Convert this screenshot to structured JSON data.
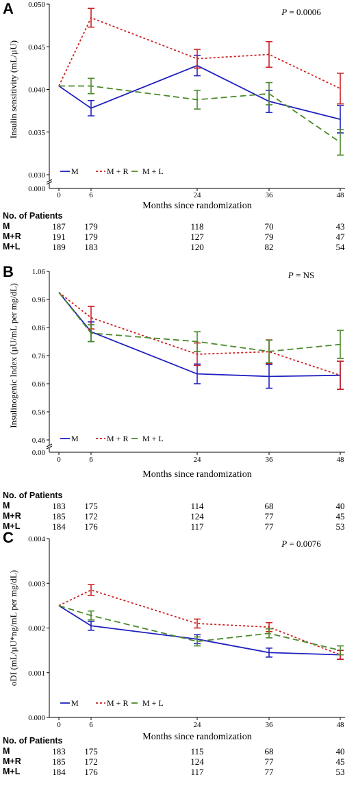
{
  "x_tick_labels": [
    "0",
    "6",
    "24",
    "36",
    "48"
  ],
  "xlabel": "Months since randomization",
  "legend": [
    {
      "name": "M",
      "color": "#2020c0",
      "dash": "solid"
    },
    {
      "name": "M + R",
      "color": "#cc2222",
      "dash": "dotted"
    },
    {
      "name": "M + L",
      "color": "#4a8a2a",
      "dash": "dashed"
    }
  ],
  "patients_header": "No. of Patients",
  "chart_data": [
    {
      "panel": "A",
      "type": "line",
      "ylabel": "Insulin sensitivity (mL/µU)",
      "p_label": "P",
      "p_value": " = 0.0006",
      "x": [
        0,
        6,
        24,
        36,
        48
      ],
      "ylim": [
        0.03,
        0.05
      ],
      "yticks": [
        "0.030",
        "0.035",
        "0.040",
        "0.045",
        "0.050"
      ],
      "ytick_values": [
        0.03,
        0.035,
        0.04,
        0.045,
        0.05
      ],
      "axis_break_label": "0.000",
      "series": [
        {
          "name": "M",
          "values": [
            0.0404,
            0.0378,
            0.0428,
            0.0386,
            0.0365
          ],
          "err": [
            0,
            0.0009,
            0.0012,
            0.0013,
            0.0016
          ]
        },
        {
          "name": "M + R",
          "values": [
            0.0404,
            0.0484,
            0.0436,
            0.0441,
            0.0401
          ],
          "err": [
            0,
            0.0011,
            0.0011,
            0.0015,
            0.0018
          ]
        },
        {
          "name": "M + L",
          "values": [
            0.0404,
            0.0404,
            0.0388,
            0.0395,
            0.0338
          ],
          "err": [
            0,
            0.0009,
            0.0011,
            0.0013,
            0.0015
          ]
        }
      ],
      "patients": [
        {
          "label": "M",
          "counts": [
            "187",
            "179",
            "118",
            "70",
            "43"
          ]
        },
        {
          "label": "M+R",
          "counts": [
            "191",
            "179",
            "127",
            "79",
            "47"
          ]
        },
        {
          "label": "M+L",
          "counts": [
            "189",
            "183",
            "120",
            "82",
            "54"
          ]
        }
      ]
    },
    {
      "panel": "B",
      "type": "line",
      "ylabel": "Insulinogenic Index (µU/mL per mg/dL)",
      "p_label": "P",
      "p_value": " = NS",
      "x": [
        0,
        6,
        24,
        36,
        48
      ],
      "ylim": [
        0.46,
        1.06
      ],
      "yticks": [
        "0.46",
        "0.56",
        "0.66",
        "0.76",
        "0.86",
        "0.96",
        "1.06"
      ],
      "ytick_values": [
        0.46,
        0.56,
        0.66,
        0.76,
        0.86,
        0.96,
        1.06
      ],
      "axis_break_label": "0.00",
      "series": [
        {
          "name": "M",
          "values": [
            0.985,
            0.845,
            0.695,
            0.686,
            0.69
          ],
          "err": [
            0,
            0.035,
            0.035,
            0.042,
            0.05
          ]
        },
        {
          "name": "M + R",
          "values": [
            0.985,
            0.895,
            0.765,
            0.774,
            0.69
          ],
          "err": [
            0,
            0.04,
            0.04,
            0.042,
            0.05
          ]
        },
        {
          "name": "M + L",
          "values": [
            0.985,
            0.84,
            0.81,
            0.775,
            0.8
          ],
          "err": [
            0,
            0.03,
            0.035,
            0.04,
            0.05
          ]
        }
      ],
      "patients": [
        {
          "label": "M",
          "counts": [
            "183",
            "175",
            "114",
            "68",
            "40"
          ]
        },
        {
          "label": "M+R",
          "counts": [
            "185",
            "172",
            "124",
            "77",
            "45"
          ]
        },
        {
          "label": "M+L",
          "counts": [
            "184",
            "176",
            "117",
            "77",
            "53"
          ]
        }
      ]
    },
    {
      "panel": "C",
      "type": "line",
      "ylabel": "oDI (mL/µU*ng/mL per mg/dL)",
      "p_label": "P",
      "p_value": " = 0.0076",
      "x": [
        0,
        6,
        24,
        36,
        48
      ],
      "ylim": [
        0,
        0.004
      ],
      "yticks": [
        "0.000",
        "0.001",
        "0.002",
        "0.003",
        "0.004"
      ],
      "ytick_values": [
        0,
        0.001,
        0.002,
        0.003,
        0.004
      ],
      "axis_break_label": "",
      "series": [
        {
          "name": "M",
          "values": [
            0.0025,
            0.00205,
            0.00175,
            0.00145,
            0.0014
          ],
          "err": [
            0,
            0.0001,
            0.0001,
            0.0001,
            0.0001
          ]
        },
        {
          "name": "M + R",
          "values": [
            0.0025,
            0.00285,
            0.0021,
            0.00202,
            0.0014
          ],
          "err": [
            0,
            0.00012,
            0.0001,
            0.0001,
            0.0001
          ]
        },
        {
          "name": "M + L",
          "values": [
            0.0025,
            0.00228,
            0.0017,
            0.00188,
            0.0015
          ],
          "err": [
            0,
            0.0001,
            0.0001,
            0.0001,
            0.0001
          ]
        }
      ],
      "patients": [
        {
          "label": "M",
          "counts": [
            "183",
            "175",
            "115",
            "68",
            "40"
          ]
        },
        {
          "label": "M+R",
          "counts": [
            "185",
            "172",
            "124",
            "77",
            "45"
          ]
        },
        {
          "label": "M+L",
          "counts": [
            "184",
            "176",
            "117",
            "77",
            "53"
          ]
        }
      ]
    }
  ]
}
